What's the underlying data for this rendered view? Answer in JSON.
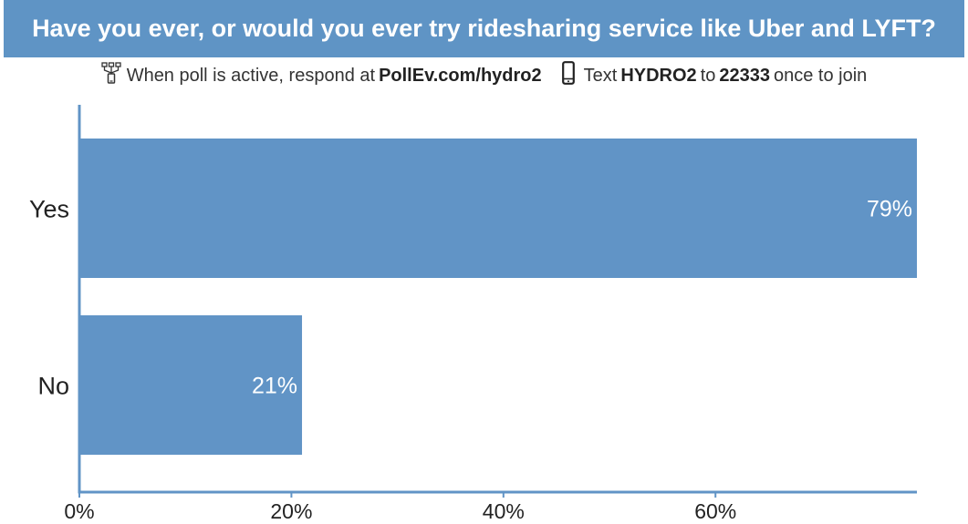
{
  "header": {
    "title": "Have you ever, or would you ever try ridesharing service like Uber and LYFT?"
  },
  "instructions": {
    "web_icon": "web-response-icon",
    "web_prefix": "When poll is active, respond at",
    "web_url": "PollEv.com/hydro2",
    "phone_icon": "mobile-phone-icon",
    "text_prefix": "Text",
    "text_code": "HYDRO2",
    "text_to": "to",
    "text_number": "22333",
    "text_suffix": "once to join"
  },
  "colors": {
    "bar": "#6194c6",
    "axis": "#6194c6",
    "header_bg": "#5f94c5"
  },
  "chart_data": {
    "type": "bar",
    "orientation": "horizontal",
    "categories": [
      "Yes",
      "No"
    ],
    "values": [
      79,
      21
    ],
    "value_labels": [
      "79%",
      "21%"
    ],
    "xlim": [
      0,
      79
    ],
    "x_ticks": [
      0,
      20,
      40,
      60
    ],
    "x_tick_labels": [
      "0%",
      "20%",
      "40%",
      "60%"
    ],
    "grid": false
  }
}
